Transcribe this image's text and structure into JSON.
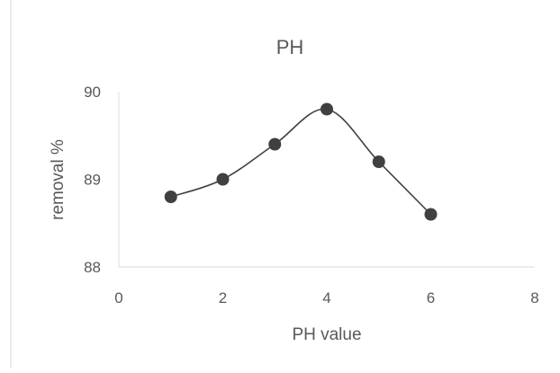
{
  "chart_data": {
    "type": "scatter",
    "title": "PH",
    "xlabel": "PH value",
    "ylabel": "removal %",
    "xlim": [
      0,
      8
    ],
    "ylim": [
      88,
      90
    ],
    "x_ticks": [
      "0",
      "2",
      "4",
      "6",
      "8"
    ],
    "y_ticks": [
      "88",
      "89",
      "90"
    ],
    "grid": false,
    "legend": "none",
    "smooth_line": true,
    "series": [
      {
        "x": [
          1,
          2,
          3,
          4,
          5,
          6
        ],
        "y": [
          88.8,
          89.0,
          89.4,
          89.8,
          89.2,
          88.6
        ],
        "color": "#404040"
      }
    ]
  }
}
